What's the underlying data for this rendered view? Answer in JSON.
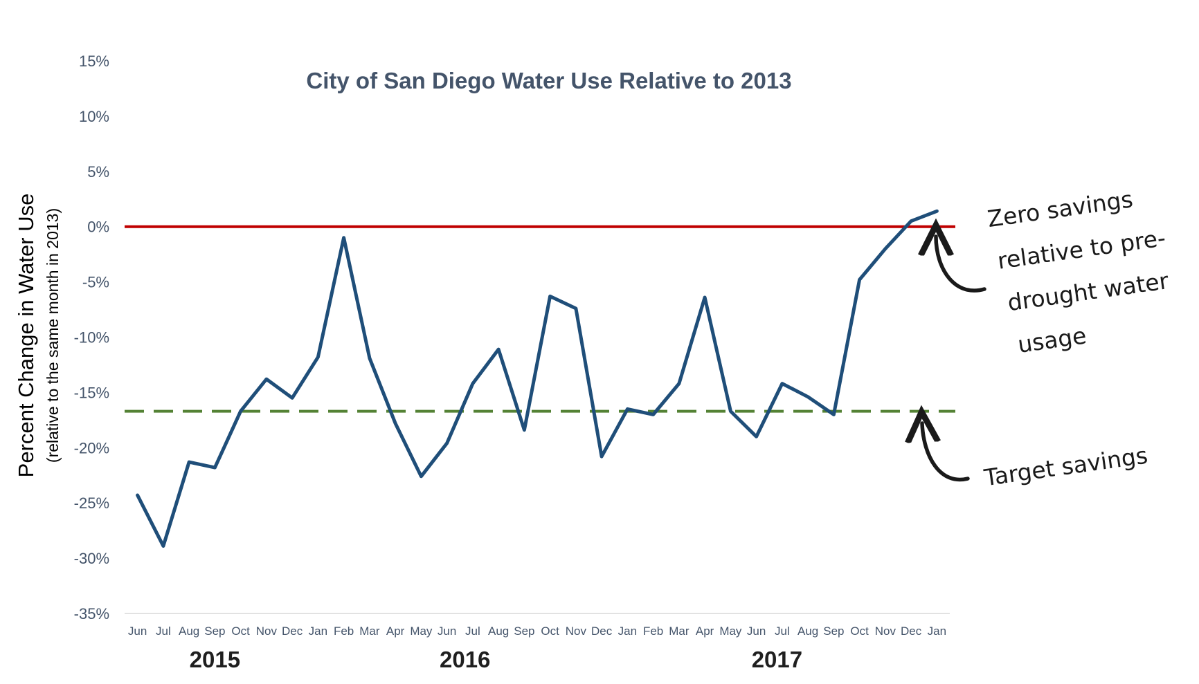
{
  "chart_data": {
    "type": "line",
    "title": "City of San Diego Water Use Relative to 2013",
    "ylabel": "Percent Change in Water Use",
    "ylabel_sub": "(relative to the same month in 2013)",
    "xlabel": "",
    "ylim": [
      -35,
      15
    ],
    "yticks": [
      "15%",
      "10%",
      "5%",
      "0%",
      "-5%",
      "-10%",
      "-15%",
      "-20%",
      "-25%",
      "-30%",
      "-35%"
    ],
    "ytick_values": [
      15,
      10,
      5,
      0,
      -5,
      -10,
      -15,
      -20,
      -25,
      -30,
      -35
    ],
    "categories": [
      "Jun",
      "Jul",
      "Aug",
      "Sep",
      "Oct",
      "Nov",
      "Dec",
      "Jan",
      "Feb",
      "Mar",
      "Apr",
      "May",
      "Jun",
      "Jul",
      "Aug",
      "Sep",
      "Oct",
      "Nov",
      "Dec",
      "Jan",
      "Feb",
      "Mar",
      "Apr",
      "May",
      "Jun",
      "Jul",
      "Aug",
      "Sep",
      "Oct",
      "Nov",
      "Dec",
      "Jan"
    ],
    "year_labels": [
      {
        "text": "2015",
        "category_index": 3
      },
      {
        "text": "2016",
        "category_index": 12.7
      },
      {
        "text": "2017",
        "category_index": 24.8
      }
    ],
    "series": [
      {
        "values": [
          -24.3,
          -28.9,
          -21.3,
          -21.8,
          -16.7,
          -13.8,
          -15.5,
          -11.8,
          -1.0,
          -11.9,
          -17.8,
          -22.6,
          -19.6,
          -14.2,
          -11.1,
          -18.4,
          -6.3,
          -7.4,
          -20.8,
          -16.5,
          -17.0,
          -14.2,
          -6.4,
          -16.7,
          -19.0,
          -14.2,
          -15.4,
          -17.0,
          -4.8,
          -2.0,
          0.5,
          1.4
        ],
        "color": "#1f4e79"
      }
    ],
    "reference_lines": [
      {
        "value": 0,
        "color": "#c00000",
        "style": "solid"
      },
      {
        "value": -16.7,
        "color": "#548235",
        "style": "dashed"
      }
    ],
    "annotations": [
      {
        "lines": [
          "Zero savings",
          "relative to pre-",
          "drought water",
          "usage"
        ],
        "points_to": "0% line"
      },
      {
        "lines": [
          "Target savings"
        ],
        "points_to": "dashed target line"
      }
    ],
    "grid": false,
    "legend": "none"
  }
}
